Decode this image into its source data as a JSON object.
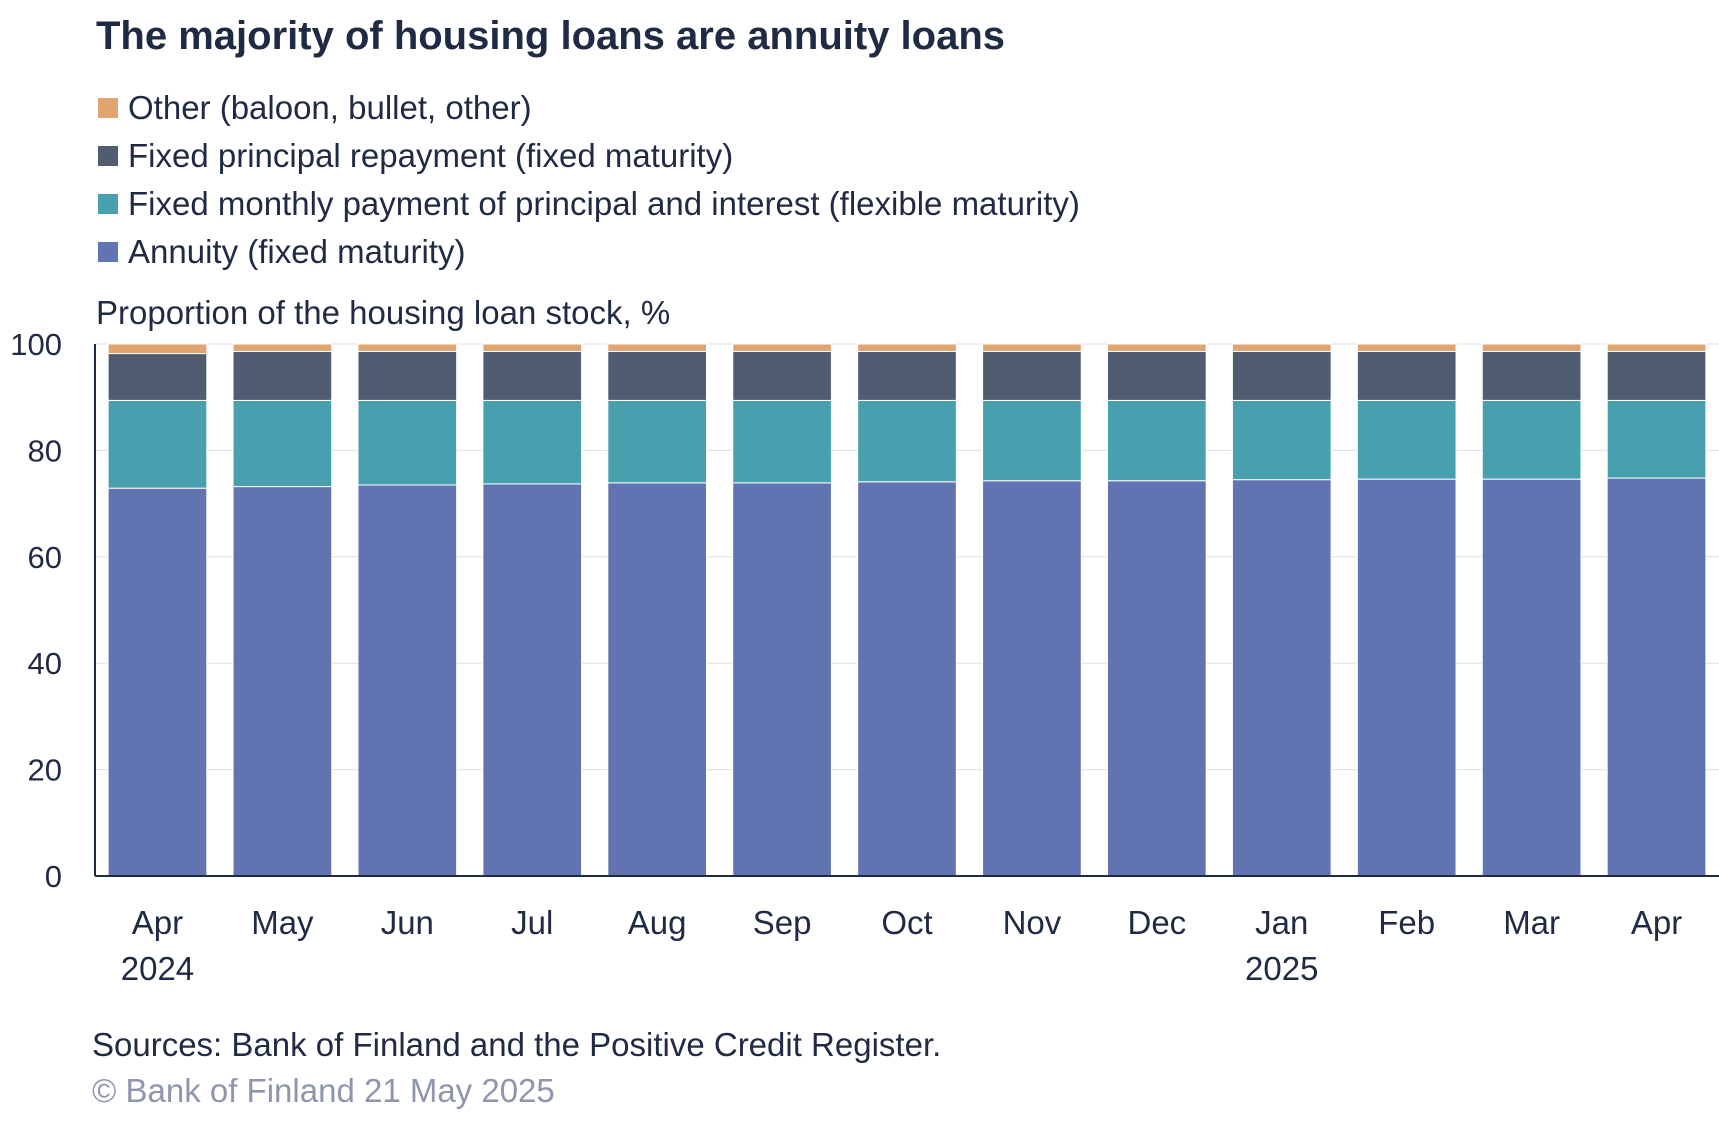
{
  "chart_data": {
    "type": "bar",
    "stacked": true,
    "title": "The majority of housing loans are annuity loans",
    "ylabel": "Proportion of the housing loan stock, %",
    "xlabel": "",
    "ylim": [
      0,
      100
    ],
    "yticks": [
      "0",
      "20",
      "40",
      "60",
      "80",
      "100"
    ],
    "grid": true,
    "categories": [
      "Apr",
      "May",
      "Jun",
      "Jul",
      "Aug",
      "Sep",
      "Oct",
      "Nov",
      "Dec",
      "Jan",
      "Feb",
      "Mar",
      "Apr"
    ],
    "category_years": [
      "2024",
      "",
      "",
      "",
      "",
      "",
      "",
      "",
      "",
      "2025",
      "",
      "",
      ""
    ],
    "legend_order": [
      3,
      2,
      1,
      0
    ],
    "series": [
      {
        "name": "Annuity (fixed maturity)",
        "color": "#6173b0",
        "values": [
          72.9,
          73.2,
          73.5,
          73.7,
          73.9,
          73.9,
          74.1,
          74.3,
          74.3,
          74.5,
          74.6,
          74.6,
          74.8
        ]
      },
      {
        "name": "Fixed monthly payment of principal and interest (flexible maturity)",
        "color": "#48a0ae",
        "values": [
          16.5,
          16.2,
          15.9,
          15.7,
          15.5,
          15.5,
          15.3,
          15.1,
          15.1,
          14.9,
          14.8,
          14.8,
          14.6
        ]
      },
      {
        "name": "Fixed principal repayment (fixed maturity)",
        "color": "#505c6f",
        "values": [
          8.8,
          9.2,
          9.2,
          9.2,
          9.2,
          9.2,
          9.2,
          9.2,
          9.2,
          9.2,
          9.2,
          9.2,
          9.2
        ]
      },
      {
        "name": "Other (baloon, bullet, other)",
        "color": "#e0a470",
        "values": [
          1.8,
          1.4,
          1.4,
          1.4,
          1.4,
          1.4,
          1.4,
          1.4,
          1.4,
          1.4,
          1.4,
          1.4,
          1.4
        ]
      }
    ],
    "source": "Sources: Bank of Finland and the Positive Credit Register.",
    "copyright": "© Bank of Finland 21 May 2025"
  }
}
